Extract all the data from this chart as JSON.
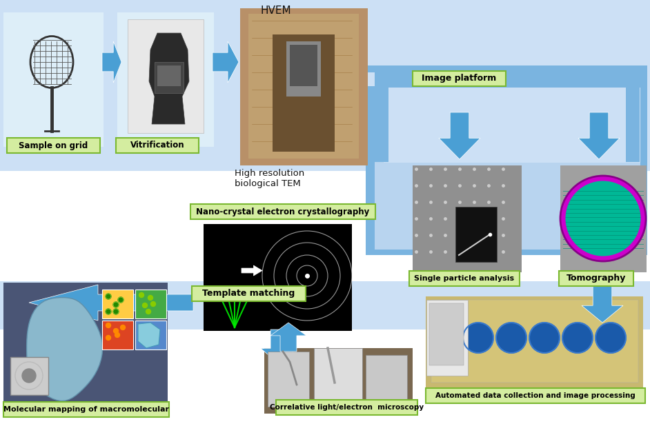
{
  "background_color": "#ffffff",
  "light_blue_1": "#cce0f5",
  "light_blue_2": "#b8d4ef",
  "medium_blue": "#7ab4e0",
  "arrow_blue": "#4a9fd4",
  "label_bg": "#d4eda0",
  "label_border": "#7ab830",
  "label_text_color": "#000000",
  "hvem_text": "HVEM",
  "high_res_text": "High resolution\nbiological TEM",
  "sample_text": "Sample on grid",
  "vitrification_text": "Vitrification",
  "image_platform_text": "Image platform",
  "single_particle_text": "Single particle analysis",
  "tomography_text": "Tomography",
  "nano_crystal_text": "Nano-crystal electron crystallography",
  "template_matching_text": "Template matching",
  "molecular_mapping_text": "Molecular mapping of macromolecular",
  "auto_data_text": "Automated data collection and image processing",
  "correlative_text": "Correlative light/electron  microscopy"
}
